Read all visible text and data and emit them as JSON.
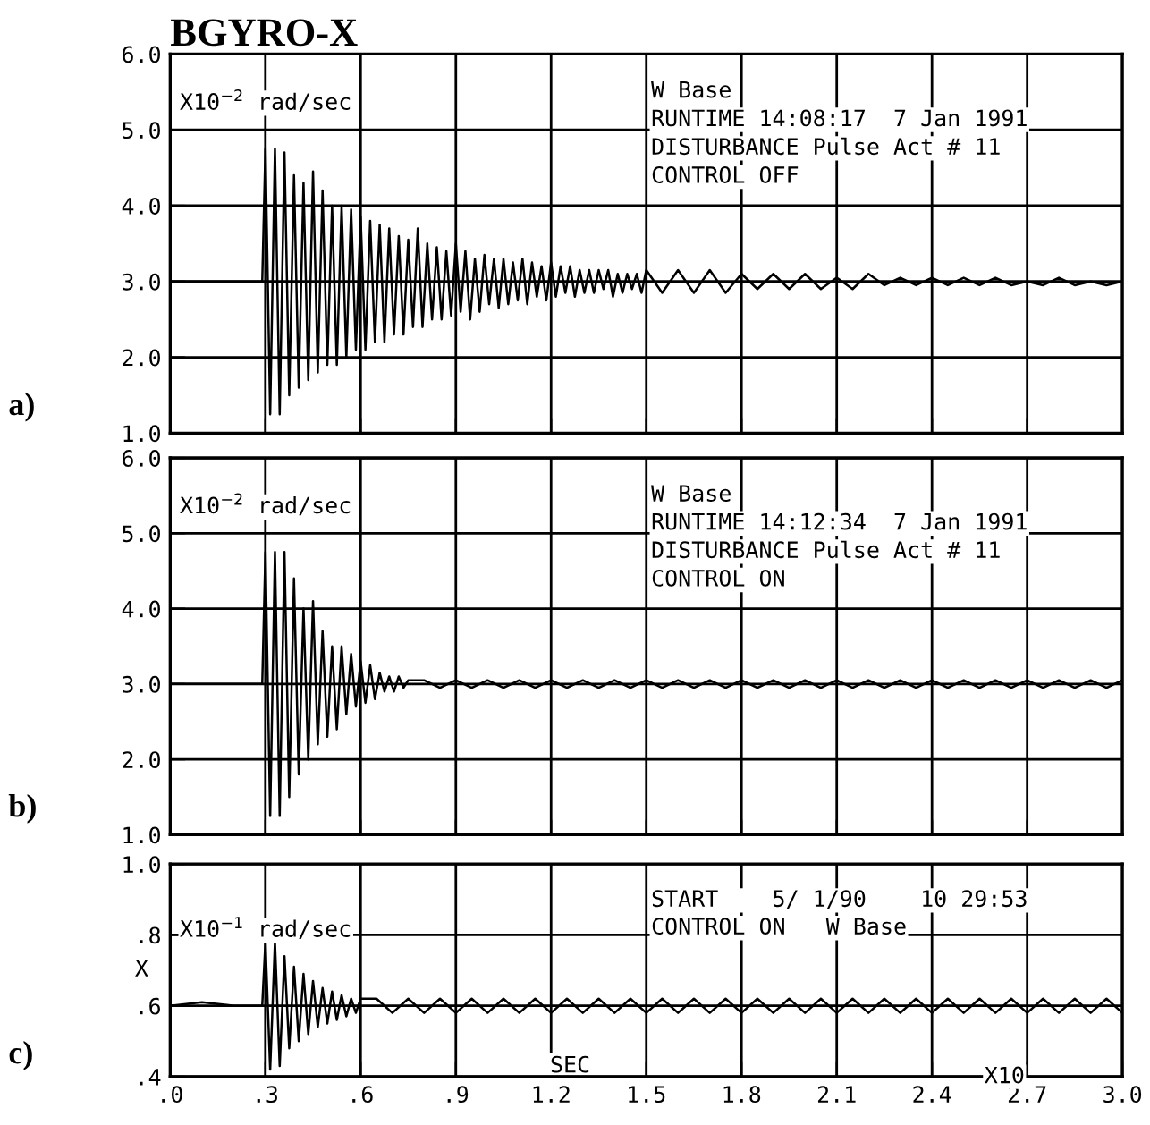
{
  "chart_data": [
    {
      "type": "line",
      "title": "BGYRO-X",
      "annotations": [
        "a)",
        "X10$^{−2}$ rad/sec",
        "W Base",
        "RUNTIME 14:08:17  7 Jan 1991",
        "DISTURBANCE Pulse Act # 11",
        "CONTROL OFF"
      ],
      "x": [
        0,
        0.1,
        0.2,
        0.29,
        0.3,
        0.315,
        0.33,
        0.345,
        0.36,
        0.375,
        0.39,
        0.405,
        0.42,
        0.435,
        0.45,
        0.465,
        0.48,
        0.495,
        0.51,
        0.525,
        0.54,
        0.555,
        0.57,
        0.585,
        0.6,
        0.615,
        0.63,
        0.645,
        0.66,
        0.675,
        0.69,
        0.705,
        0.72,
        0.735,
        0.75,
        0.765,
        0.78,
        0.795,
        0.81,
        0.825,
        0.84,
        0.855,
        0.87,
        0.885,
        0.9,
        0.915,
        0.93,
        0.945,
        0.96,
        0.975,
        0.99,
        1.005,
        1.02,
        1.035,
        1.05,
        1.065,
        1.08,
        1.095,
        1.11,
        1.125,
        1.14,
        1.155,
        1.17,
        1.185,
        1.2,
        1.215,
        1.23,
        1.245,
        1.26,
        1.275,
        1.29,
        1.305,
        1.32,
        1.335,
        1.35,
        1.365,
        1.38,
        1.395,
        1.41,
        1.425,
        1.44,
        1.455,
        1.47,
        1.485,
        1.5,
        1.55,
        1.6,
        1.65,
        1.7,
        1.75,
        1.8,
        1.85,
        1.9,
        1.95,
        2.0,
        2.05,
        2.1,
        2.15,
        2.2,
        2.25,
        2.3,
        2.35,
        2.4,
        2.45,
        2.5,
        2.55,
        2.6,
        2.65,
        2.7,
        2.75,
        2.8,
        2.85,
        2.9,
        2.95,
        3.0
      ],
      "series": [
        {
          "color": "#000000",
          "values": [
            3.0,
            3.0,
            3.0,
            3.0,
            4.75,
            1.25,
            4.75,
            1.25,
            4.7,
            1.5,
            4.4,
            1.6,
            4.3,
            1.7,
            4.45,
            1.8,
            4.2,
            1.9,
            4.0,
            1.9,
            4.0,
            2.0,
            3.95,
            2.1,
            3.85,
            2.1,
            3.8,
            2.2,
            3.75,
            2.2,
            3.7,
            2.3,
            3.6,
            2.3,
            3.55,
            2.4,
            3.7,
            2.4,
            3.5,
            2.5,
            3.45,
            2.5,
            3.4,
            2.55,
            3.5,
            2.6,
            3.4,
            2.5,
            3.3,
            2.6,
            3.35,
            2.7,
            3.3,
            2.65,
            3.3,
            2.7,
            3.25,
            2.75,
            3.3,
            2.7,
            3.25,
            2.8,
            3.2,
            2.75,
            3.25,
            2.8,
            3.2,
            2.85,
            3.2,
            2.8,
            3.15,
            2.85,
            3.15,
            2.85,
            3.15,
            2.9,
            3.15,
            2.8,
            3.1,
            2.85,
            3.1,
            2.9,
            3.1,
            2.85,
            3.15,
            2.85,
            3.15,
            2.85,
            3.15,
            2.85,
            3.1,
            2.9,
            3.1,
            2.9,
            3.1,
            2.9,
            3.05,
            2.9,
            3.1,
            2.95,
            3.05,
            2.95,
            3.05,
            2.95,
            3.05,
            2.95,
            3.05,
            2.95,
            3.0,
            2.95,
            3.05,
            2.95,
            3.0,
            2.95,
            3.0
          ]
        }
      ],
      "xlim": [
        0,
        3
      ],
      "xticks": [
        0,
        0.3,
        0.6,
        0.9,
        1.2,
        1.5,
        1.8,
        2.1,
        2.4,
        2.7,
        3.0
      ],
      "ylim": [
        1,
        6
      ],
      "yticks": [
        {
          "value": 1,
          "label": "1.0"
        },
        {
          "value": 2,
          "label": "2.0"
        },
        {
          "value": 3,
          "label": "3.0"
        },
        {
          "value": 4,
          "label": "4.0"
        },
        {
          "value": 5,
          "label": "5.0"
        },
        {
          "value": 6,
          "label": "6.0"
        }
      ],
      "grid": true,
      "tick_labels": "y"
    },
    {
      "type": "line",
      "annotations": [
        "b)",
        "X10$^{−2}$ rad/sec",
        "W Base",
        "RUNTIME 14:12:34  7 Jan 1991",
        "DISTURBANCE Pulse Act # 11",
        "CONTROL ON"
      ],
      "x": [
        0,
        0.1,
        0.2,
        0.29,
        0.3,
        0.315,
        0.33,
        0.345,
        0.36,
        0.375,
        0.39,
        0.405,
        0.42,
        0.435,
        0.45,
        0.465,
        0.48,
        0.495,
        0.51,
        0.525,
        0.54,
        0.555,
        0.57,
        0.585,
        0.6,
        0.615,
        0.63,
        0.645,
        0.66,
        0.675,
        0.69,
        0.705,
        0.72,
        0.735,
        0.75,
        0.8,
        0.85,
        0.9,
        0.95,
        1.0,
        1.05,
        1.1,
        1.15,
        1.2,
        1.25,
        1.3,
        1.35,
        1.4,
        1.45,
        1.5,
        1.55,
        1.6,
        1.65,
        1.7,
        1.75,
        1.8,
        1.85,
        1.9,
        1.95,
        2.0,
        2.05,
        2.1,
        2.15,
        2.2,
        2.25,
        2.3,
        2.35,
        2.4,
        2.45,
        2.5,
        2.55,
        2.6,
        2.65,
        2.7,
        2.75,
        2.8,
        2.85,
        2.9,
        2.95,
        3.0
      ],
      "series": [
        {
          "color": "#000000",
          "values": [
            3.0,
            3.0,
            3.0,
            3.0,
            4.75,
            1.25,
            4.75,
            1.25,
            4.75,
            1.5,
            4.4,
            1.8,
            4.0,
            2.0,
            4.1,
            2.2,
            3.7,
            2.3,
            3.5,
            2.4,
            3.5,
            2.6,
            3.4,
            2.7,
            3.3,
            2.75,
            3.25,
            2.8,
            3.15,
            2.9,
            3.1,
            2.9,
            3.1,
            2.95,
            3.05,
            3.05,
            2.95,
            3.05,
            2.95,
            3.05,
            2.95,
            3.05,
            2.95,
            3.05,
            2.95,
            3.05,
            2.95,
            3.05,
            2.95,
            3.05,
            2.95,
            3.05,
            2.95,
            3.05,
            2.95,
            3.05,
            2.95,
            3.05,
            2.95,
            3.05,
            2.95,
            3.05,
            2.95,
            3.05,
            2.95,
            3.05,
            2.95,
            3.05,
            2.95,
            3.05,
            2.95,
            3.05,
            2.95,
            3.05,
            2.95,
            3.05,
            2.95,
            3.05,
            2.95,
            3.05
          ]
        }
      ],
      "xlim": [
        0,
        3
      ],
      "xticks": [
        0,
        0.3,
        0.6,
        0.9,
        1.2,
        1.5,
        1.8,
        2.1,
        2.4,
        2.7,
        3.0
      ],
      "ylim": [
        1,
        6
      ],
      "yticks": [
        {
          "value": 1,
          "label": "1.0"
        },
        {
          "value": 2,
          "label": "2.0"
        },
        {
          "value": 3,
          "label": "3.0"
        },
        {
          "value": 4,
          "label": "4.0"
        },
        {
          "value": 5,
          "label": "5.0"
        },
        {
          "value": 6,
          "label": "6.0"
        }
      ],
      "grid": true,
      "tick_labels": "y"
    },
    {
      "type": "line",
      "xlabel": "SEC",
      "ylabel": "X",
      "annotations": [
        "c)",
        "X10$^{−1}$ rad/sec",
        "START    5/ 1/90    10 29:53",
        "CONTROL ON   W Base",
        "X10"
      ],
      "x": [
        0,
        0.1,
        0.2,
        0.29,
        0.3,
        0.315,
        0.33,
        0.345,
        0.36,
        0.375,
        0.39,
        0.405,
        0.42,
        0.435,
        0.45,
        0.465,
        0.48,
        0.495,
        0.51,
        0.525,
        0.54,
        0.555,
        0.57,
        0.585,
        0.6,
        0.65,
        0.7,
        0.75,
        0.8,
        0.85,
        0.9,
        0.95,
        1.0,
        1.05,
        1.1,
        1.15,
        1.2,
        1.25,
        1.3,
        1.35,
        1.4,
        1.45,
        1.5,
        1.55,
        1.6,
        1.65,
        1.7,
        1.75,
        1.8,
        1.85,
        1.9,
        1.95,
        2.0,
        2.05,
        2.1,
        2.15,
        2.2,
        2.25,
        2.3,
        2.35,
        2.4,
        2.45,
        2.5,
        2.55,
        2.6,
        2.65,
        2.7,
        2.75,
        2.8,
        2.85,
        2.9,
        2.95,
        3.0
      ],
      "series": [
        {
          "color": "#000000",
          "values": [
            0.6,
            0.61,
            0.6,
            0.6,
            0.78,
            0.42,
            0.78,
            0.43,
            0.74,
            0.48,
            0.71,
            0.5,
            0.69,
            0.52,
            0.67,
            0.54,
            0.65,
            0.55,
            0.64,
            0.56,
            0.63,
            0.57,
            0.62,
            0.58,
            0.62,
            0.62,
            0.58,
            0.62,
            0.58,
            0.62,
            0.58,
            0.62,
            0.58,
            0.62,
            0.58,
            0.62,
            0.58,
            0.62,
            0.58,
            0.62,
            0.58,
            0.62,
            0.58,
            0.62,
            0.58,
            0.62,
            0.58,
            0.62,
            0.58,
            0.62,
            0.58,
            0.62,
            0.58,
            0.62,
            0.58,
            0.62,
            0.58,
            0.62,
            0.58,
            0.62,
            0.58,
            0.62,
            0.58,
            0.62,
            0.58,
            0.62,
            0.58,
            0.62,
            0.58,
            0.62,
            0.58,
            0.62,
            0.58
          ]
        }
      ],
      "xlim": [
        0,
        3
      ],
      "xticks": [
        {
          "value": 0,
          "label": ".0"
        },
        {
          "value": 0.3,
          "label": ".3"
        },
        {
          "value": 0.6,
          "label": ".6"
        },
        {
          "value": 0.9,
          "label": ".9"
        },
        {
          "value": 1.2,
          "label": "1.2"
        },
        {
          "value": 1.5,
          "label": "1.5"
        },
        {
          "value": 1.8,
          "label": "1.8"
        },
        {
          "value": 2.1,
          "label": "2.1"
        },
        {
          "value": 2.4,
          "label": "2.4"
        },
        {
          "value": 2.7,
          "label": "2.7"
        },
        {
          "value": 3.0,
          "label": "3.0"
        }
      ],
      "ylim": [
        0.4,
        1.0
      ],
      "yticks": [
        {
          "value": 0.4,
          "label": ".4"
        },
        {
          "value": 0.6,
          "label": ".6"
        },
        {
          "value": 0.8,
          "label": ".8"
        },
        {
          "value": 1.0,
          "label": "1.0"
        }
      ],
      "grid": true
    }
  ]
}
